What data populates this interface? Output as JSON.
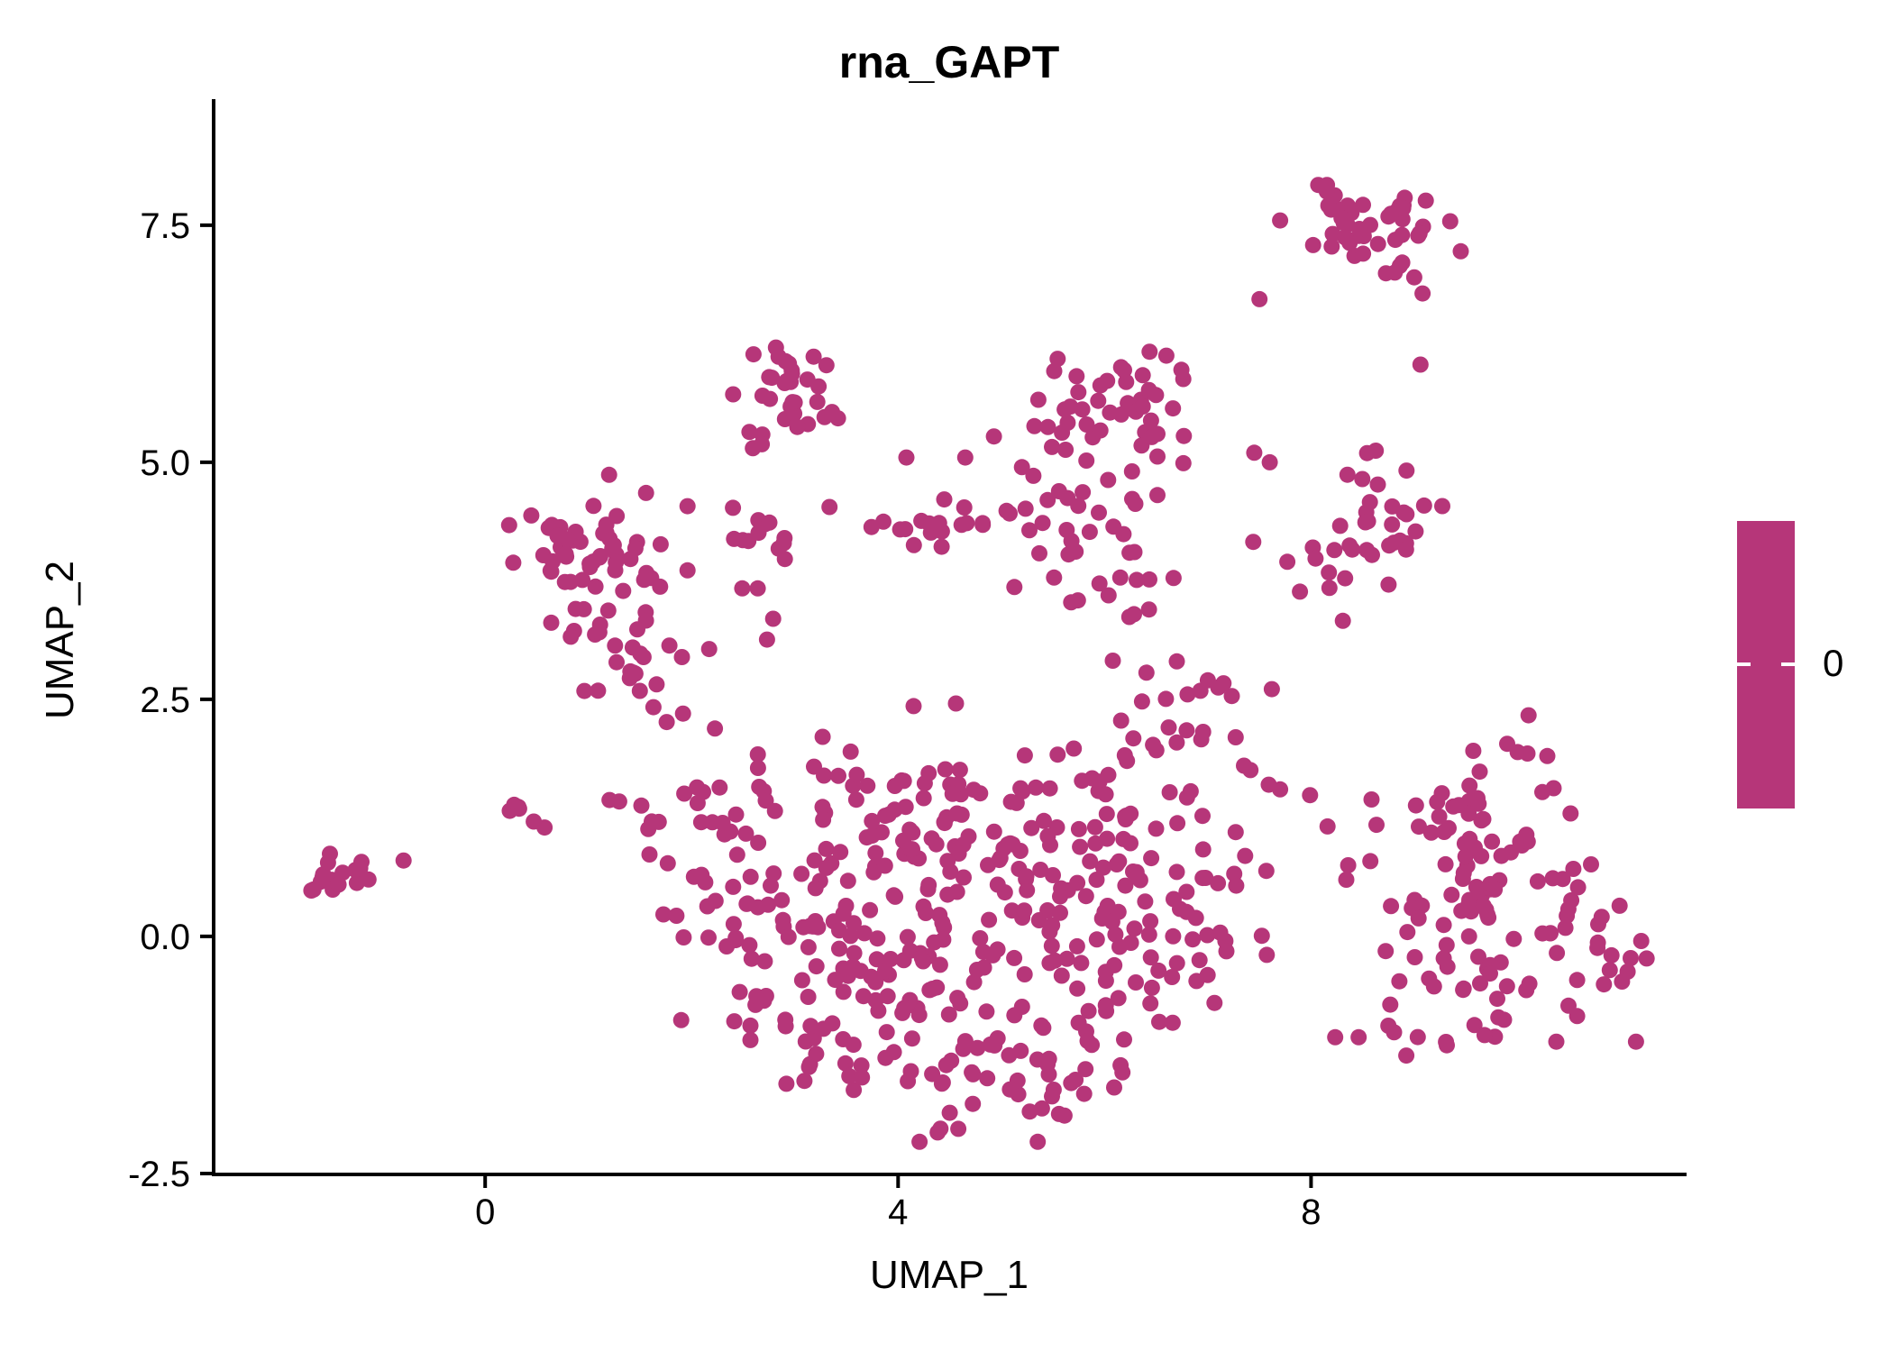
{
  "title": "rna_GAPT",
  "legend": {
    "label": "0",
    "color": "#B63679"
  },
  "chart_data": {
    "type": "scatter",
    "title": "rna_GAPT",
    "xlabel": "UMAP_1",
    "ylabel": "UMAP_2",
    "xlim": [
      -2.63,
      11.62
    ],
    "ylim": [
      -2.51,
      8.81
    ],
    "x_ticks": [
      0,
      4,
      8
    ],
    "x_tick_labels": [
      "0",
      "4",
      "8"
    ],
    "y_ticks": [
      -2.5,
      0.0,
      2.5,
      5.0,
      7.5
    ],
    "y_tick_labels": [
      "-2.5",
      "0.0",
      "2.5",
      "5.0",
      "7.5"
    ],
    "grid": false,
    "axis_color": "#000000",
    "point_color": "#B63679",
    "point_radius_px": 9,
    "legend": {
      "position": "right",
      "type": "colorbar",
      "single_value": 0,
      "tick_labels": [
        "0"
      ],
      "color": "#B63679"
    },
    "seed": 11,
    "total_points_approx": 950,
    "clusters": [
      {
        "id": "top-right",
        "cx": 8.62,
        "cy": 7.55,
        "sx": 0.36,
        "sy": 0.17,
        "n": 40
      },
      {
        "id": "top-right-fringe",
        "cx": 8.9,
        "cy": 7.1,
        "sx": 0.25,
        "sy": 0.15,
        "n": 5
      },
      {
        "id": "upper-mid",
        "cx": 2.93,
        "cy": 5.72,
        "sx": 0.24,
        "sy": 0.26,
        "n": 30
      },
      {
        "id": "top-center",
        "cx": 6.02,
        "cy": 5.55,
        "sx": 0.34,
        "sy": 0.28,
        "n": 42
      },
      {
        "id": "top-center-lower",
        "cx": 5.72,
        "cy": 4.62,
        "sx": 0.36,
        "sy": 0.38,
        "n": 30
      },
      {
        "id": "center-upper-connector",
        "cx": 6.05,
        "cy": 3.72,
        "sx": 0.42,
        "sy": 0.3,
        "n": 14
      },
      {
        "id": "right-upper",
        "cx": 8.72,
        "cy": 4.55,
        "sx": 0.28,
        "sy": 0.26,
        "n": 22
      },
      {
        "id": "right-upper-arm",
        "cx": 8.33,
        "cy": 3.88,
        "sx": 0.25,
        "sy": 0.27,
        "n": 14
      },
      {
        "id": "left",
        "cx": 0.98,
        "cy": 4.05,
        "sx": 0.34,
        "sy": 0.38,
        "n": 48
      },
      {
        "id": "left-lower",
        "cx": 1.3,
        "cy": 3.2,
        "sx": 0.3,
        "sy": 0.3,
        "n": 24
      },
      {
        "id": "left-tail",
        "cx": 1.45,
        "cy": 2.55,
        "sx": 0.22,
        "sy": 0.18,
        "n": 7
      },
      {
        "id": "left-edge-small",
        "cx": 0.45,
        "cy": 1.33,
        "sx": 0.17,
        "sy": 0.12,
        "n": 6
      },
      {
        "id": "band-clump",
        "cx": 4.42,
        "cy": 4.3,
        "sx": 0.25,
        "sy": 0.14,
        "n": 15
      },
      {
        "id": "band-row",
        "cx": 2.95,
        "cy": 4.25,
        "sx": 0.45,
        "sy": 0.2,
        "n": 13
      },
      {
        "id": "cloud-left-arm",
        "cx": 2.05,
        "cy": 1.25,
        "sx": 0.42,
        "sy": 0.5,
        "n": 34
      },
      {
        "id": "cloud-left-bottom",
        "cx": 2.55,
        "cy": -0.05,
        "sx": 0.4,
        "sy": 0.45,
        "n": 30
      },
      {
        "id": "cloud-midleft",
        "cx": 3.3,
        "cy": 0.8,
        "sx": 0.45,
        "sy": 0.65,
        "n": 46
      },
      {
        "id": "cloud-upper-mid",
        "cx": 4.3,
        "cy": 1.35,
        "sx": 0.5,
        "sy": 0.55,
        "n": 50
      },
      {
        "id": "cloud-lower-mid",
        "cx": 4.25,
        "cy": -0.2,
        "sx": 0.5,
        "sy": 0.55,
        "n": 50
      },
      {
        "id": "cloud-center-right",
        "cx": 5.25,
        "cy": 0.5,
        "sx": 0.5,
        "sy": 0.75,
        "n": 58
      },
      {
        "id": "cloud-upper-right",
        "cx": 6.05,
        "cy": 1.15,
        "sx": 0.45,
        "sy": 0.65,
        "n": 48
      },
      {
        "id": "cloud-lower-right",
        "cx": 6.3,
        "cy": -0.45,
        "sx": 0.4,
        "sy": 0.55,
        "n": 38
      },
      {
        "id": "cloud-bottom-arc",
        "cx": 5.0,
        "cy": -1.55,
        "sx": 0.65,
        "sy": 0.28,
        "n": 42
      },
      {
        "id": "cloud-bottom-left",
        "cx": 3.45,
        "cy": -1.0,
        "sx": 0.4,
        "sy": 0.38,
        "n": 26
      },
      {
        "id": "cloud-top-bump",
        "cx": 6.85,
        "cy": 2.3,
        "sx": 0.35,
        "sy": 0.35,
        "n": 18
      },
      {
        "id": "cloud-right-edge",
        "cx": 7.25,
        "cy": 0.85,
        "sx": 0.33,
        "sy": 0.6,
        "n": 14
      },
      {
        "id": "right-upper-blob",
        "cx": 9.25,
        "cy": 1.15,
        "sx": 0.45,
        "sy": 0.45,
        "n": 40
      },
      {
        "id": "right-main",
        "cx": 9.6,
        "cy": -0.1,
        "sx": 0.5,
        "sy": 0.5,
        "n": 52
      },
      {
        "id": "right-east",
        "cx": 10.55,
        "cy": 0.1,
        "sx": 0.35,
        "sy": 0.55,
        "n": 30
      },
      {
        "id": "right-top-few",
        "cx": 9.95,
        "cy": 1.95,
        "sx": 0.25,
        "sy": 0.18,
        "n": 7
      },
      {
        "id": "right-bottom-tail",
        "cx": 8.85,
        "cy": -1.0,
        "sx": 0.28,
        "sy": 0.22,
        "n": 8
      },
      {
        "id": "far-left",
        "cx": -1.55,
        "cy": 0.63,
        "sx": 0.16,
        "sy": 0.11,
        "n": 14
      }
    ],
    "extra_points": [
      [
        -1.21,
        0.72
      ],
      [
        -1.13,
        0.6
      ],
      [
        -0.79,
        0.8
      ],
      [
        7.7,
        7.55
      ],
      [
        8.02,
        7.29
      ],
      [
        9.0,
        6.95
      ],
      [
        9.08,
        6.78
      ],
      [
        7.5,
        6.72
      ],
      [
        9.06,
        6.03
      ],
      [
        7.45,
        5.1
      ],
      [
        7.6,
        5.0
      ],
      [
        7.44,
        4.16
      ],
      [
        7.77,
        3.95
      ],
      [
        4.08,
        5.05
      ],
      [
        4.65,
        5.05
      ],
      [
        5.08,
        4.46
      ],
      [
        5.4,
        4.36
      ],
      [
        2.4,
        4.52
      ],
      [
        2.55,
        4.17
      ],
      [
        2.9,
        4.2
      ],
      [
        2.49,
        3.67
      ],
      [
        2.64,
        3.67
      ],
      [
        2.17,
        3.03
      ],
      [
        2.79,
        3.35
      ],
      [
        2.73,
        3.13
      ],
      [
        3.36,
        5.53
      ],
      [
        3.23,
        5.8
      ],
      [
        2.68,
        5.19
      ],
      [
        2.56,
        5.32
      ],
      [
        6.7,
        2.9
      ],
      [
        7.0,
        2.7
      ],
      [
        7.27,
        2.1
      ],
      [
        7.35,
        1.8
      ],
      [
        7.59,
        1.6
      ],
      [
        7.7,
        1.55
      ],
      [
        7.99,
        1.49
      ],
      [
        8.16,
        1.16
      ],
      [
        7.27,
        1.1
      ],
      [
        6.7,
        0.68
      ],
      [
        6.73,
        0.29
      ],
      [
        7.12,
        0.04
      ],
      [
        6.92,
        -0.25
      ],
      [
        6.89,
        -0.47
      ],
      [
        6.66,
        -0.91
      ],
      [
        8.36,
        0.75
      ]
    ]
  }
}
